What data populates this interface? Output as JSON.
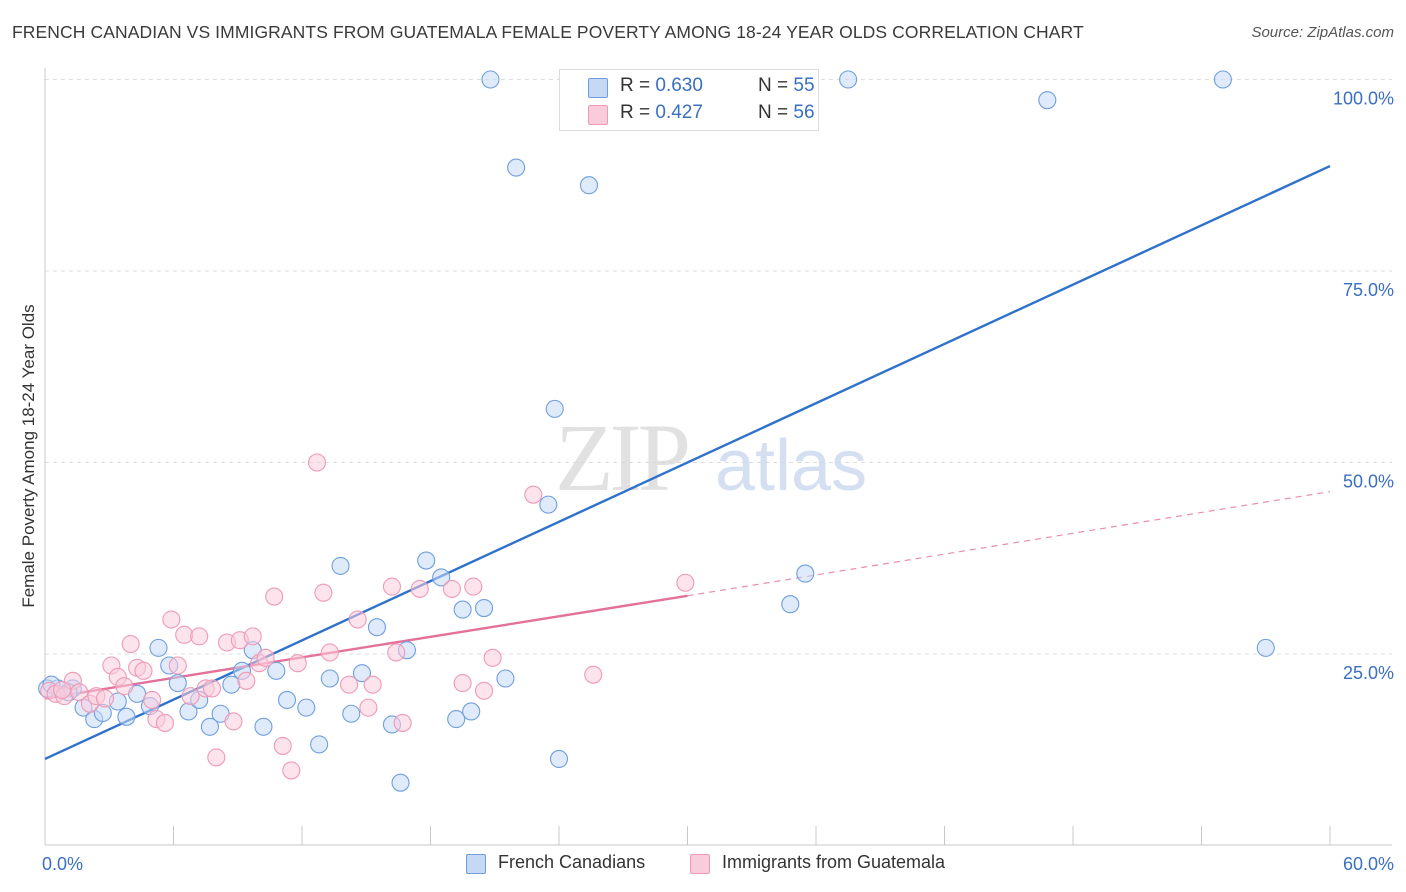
{
  "title": "FRENCH CANADIAN VS IMMIGRANTS FROM GUATEMALA FEMALE POVERTY AMONG 18-24 YEAR OLDS CORRELATION CHART",
  "source": "Source: ZipAtlas.com",
  "watermark": {
    "zip": "ZIP",
    "atlas": "atlas"
  },
  "colors": {
    "blue": "#6f9fe0",
    "blue_fill": "#c5d9f5",
    "blue_line": "#2f72cc",
    "pink": "#ef9ab6",
    "pink_fill": "#f9ccdc",
    "pink_line": "#e3719a",
    "axis_text": "#3a6fc4",
    "grid": "#dddddd"
  },
  "legend_top": {
    "rows": [
      {
        "r_label": "R = ",
        "r_value": "0.630",
        "n_label": "N = ",
        "n_value": "55",
        "color": "blue"
      },
      {
        "r_label": "R = ",
        "r_value": "0.427",
        "n_label": "N = ",
        "n_value": "56",
        "color": "pink"
      }
    ]
  },
  "legend_bottom": [
    {
      "label": "French Canadians",
      "color": "blue"
    },
    {
      "label": "Immigrants from Guatemala",
      "color": "pink"
    }
  ],
  "chart_data": {
    "type": "scatter",
    "title": "FRENCH CANADIAN VS IMMIGRANTS FROM GUATEMALA FEMALE POVERTY AMONG 18-24 YEAR OLDS CORRELATION CHART",
    "xlabel": "",
    "ylabel": "Female Poverty Among 18-24 Year Olds",
    "xlim": [
      0,
      60
    ],
    "ylim": [
      0,
      102
    ],
    "x_tick_labels": [
      {
        "value": 0,
        "label": "0.0%"
      },
      {
        "value": 60,
        "label": "60.0%"
      }
    ],
    "y_tick_labels": [
      {
        "value": 25,
        "label": "25.0%"
      },
      {
        "value": 50,
        "label": "50.0%"
      },
      {
        "value": 75,
        "label": "75.0%"
      },
      {
        "value": 100,
        "label": "100.0%"
      }
    ],
    "grid": "horizontal dashed",
    "legend_position": "top-center",
    "series": [
      {
        "name": "French Canadians",
        "color": "blue",
        "trend": {
          "x": [
            0,
            60
          ],
          "y": [
            11.3,
            88.7
          ]
        },
        "points": [
          [
            0.1,
            20.5
          ],
          [
            0.6,
            20.5
          ],
          [
            1.3,
            20.5
          ],
          [
            1.8,
            18.0
          ],
          [
            2.3,
            16.5
          ],
          [
            2.7,
            17.3
          ],
          [
            3.4,
            18.8
          ],
          [
            3.8,
            16.8
          ],
          [
            4.3,
            19.8
          ],
          [
            4.9,
            18.2
          ],
          [
            5.3,
            25.8
          ],
          [
            5.8,
            23.5
          ],
          [
            6.2,
            21.2
          ],
          [
            6.7,
            17.5
          ],
          [
            7.2,
            19.0
          ],
          [
            7.7,
            15.5
          ],
          [
            8.2,
            17.2
          ],
          [
            8.7,
            21.0
          ],
          [
            9.2,
            22.8
          ],
          [
            9.7,
            25.5
          ],
          [
            10.2,
            15.5
          ],
          [
            10.8,
            22.8
          ],
          [
            11.3,
            19.0
          ],
          [
            12.2,
            18.0
          ],
          [
            12.8,
            13.2
          ],
          [
            13.3,
            21.8
          ],
          [
            13.8,
            36.5
          ],
          [
            14.3,
            17.2
          ],
          [
            14.8,
            22.5
          ],
          [
            15.5,
            28.5
          ],
          [
            16.2,
            15.8
          ],
          [
            16.6,
            8.2
          ],
          [
            16.9,
            25.5
          ],
          [
            17.8,
            37.2
          ],
          [
            18.5,
            35.0
          ],
          [
            19.2,
            16.5
          ],
          [
            19.5,
            30.8
          ],
          [
            19.9,
            17.5
          ],
          [
            20.5,
            31.0
          ],
          [
            20.8,
            100.0
          ],
          [
            21.5,
            21.8
          ],
          [
            22.0,
            88.5
          ],
          [
            23.5,
            44.5
          ],
          [
            23.8,
            57.0
          ],
          [
            24.0,
            11.3
          ],
          [
            25.4,
            86.2
          ],
          [
            30.4,
            100.0
          ],
          [
            34.8,
            31.5
          ],
          [
            35.5,
            35.5
          ],
          [
            37.5,
            100.0
          ],
          [
            46.8,
            97.3
          ],
          [
            55.0,
            100.0
          ],
          [
            57.0,
            25.8
          ],
          [
            0.3,
            21.0
          ],
          [
            1.1,
            20.0
          ]
        ]
      },
      {
        "name": "Immigrants from Guatemala",
        "color": "pink",
        "trend": {
          "x": [
            0,
            30
          ],
          "y": [
            19.2,
            32.6
          ]
        },
        "trend_extension": {
          "x": [
            30,
            60
          ],
          "y": [
            32.6,
            46.2
          ]
        },
        "points": [
          [
            0.2,
            20.2
          ],
          [
            0.5,
            19.8
          ],
          [
            0.9,
            19.5
          ],
          [
            1.3,
            21.5
          ],
          [
            1.6,
            20.0
          ],
          [
            2.1,
            18.5
          ],
          [
            2.4,
            19.5
          ],
          [
            2.8,
            19.2
          ],
          [
            3.1,
            23.5
          ],
          [
            3.4,
            22.0
          ],
          [
            3.7,
            20.8
          ],
          [
            4.0,
            26.3
          ],
          [
            4.3,
            23.2
          ],
          [
            4.6,
            22.8
          ],
          [
            5.0,
            19.0
          ],
          [
            5.2,
            16.5
          ],
          [
            5.6,
            16.0
          ],
          [
            5.9,
            29.5
          ],
          [
            6.2,
            23.5
          ],
          [
            6.5,
            27.5
          ],
          [
            6.8,
            19.5
          ],
          [
            7.2,
            27.3
          ],
          [
            7.5,
            20.5
          ],
          [
            7.8,
            20.5
          ],
          [
            8.0,
            11.5
          ],
          [
            8.5,
            26.5
          ],
          [
            8.8,
            16.2
          ],
          [
            9.1,
            26.8
          ],
          [
            9.4,
            21.5
          ],
          [
            9.7,
            27.3
          ],
          [
            10.0,
            23.8
          ],
          [
            10.3,
            24.5
          ],
          [
            10.7,
            32.5
          ],
          [
            11.1,
            13.0
          ],
          [
            11.5,
            9.8
          ],
          [
            11.8,
            23.8
          ],
          [
            12.7,
            50.0
          ],
          [
            13.0,
            33.0
          ],
          [
            13.3,
            25.2
          ],
          [
            14.2,
            21.0
          ],
          [
            14.6,
            29.5
          ],
          [
            15.1,
            18.0
          ],
          [
            15.3,
            21.0
          ],
          [
            16.2,
            33.8
          ],
          [
            16.4,
            25.2
          ],
          [
            16.7,
            16.0
          ],
          [
            17.5,
            33.5
          ],
          [
            19.0,
            33.5
          ],
          [
            19.5,
            21.2
          ],
          [
            20.0,
            33.8
          ],
          [
            20.5,
            20.2
          ],
          [
            20.9,
            24.5
          ],
          [
            22.8,
            45.8
          ],
          [
            25.6,
            22.3
          ],
          [
            29.9,
            34.3
          ],
          [
            0.8,
            20.3
          ]
        ]
      }
    ]
  }
}
